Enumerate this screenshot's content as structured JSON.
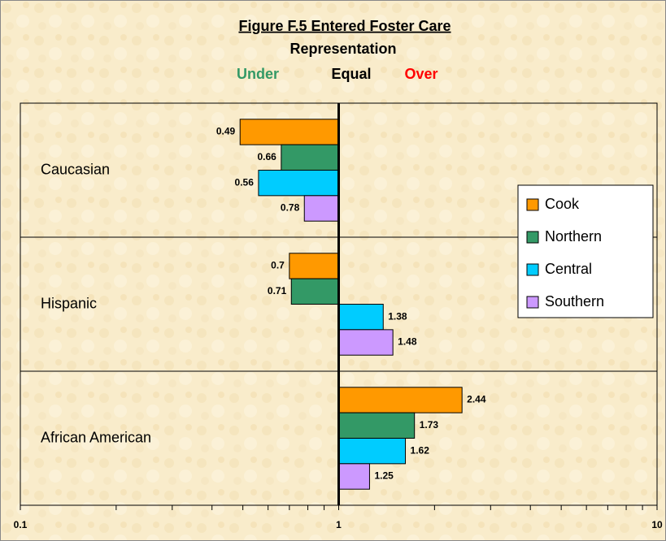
{
  "chart_data": {
    "type": "bar",
    "orientation": "horizontal",
    "title": "Figure F.5 Entered Foster Care",
    "subtitle": "Representation",
    "annotations": [
      {
        "text": "Under",
        "color": "#339966"
      },
      {
        "text": "Equal",
        "color": "#000000"
      },
      {
        "text": "Over",
        "color": "#ff0000"
      }
    ],
    "categories": [
      "Caucasian",
      "Hispanic",
      "African American"
    ],
    "series": [
      {
        "name": "Cook",
        "color": "#ff9900",
        "values": [
          0.49,
          0.7,
          2.44
        ]
      },
      {
        "name": "Northern",
        "color": "#339966",
        "values": [
          0.66,
          0.71,
          1.73
        ]
      },
      {
        "name": "Central",
        "color": "#00ccff",
        "values": [
          0.56,
          1.38,
          1.62
        ]
      },
      {
        "name": "Southern",
        "color": "#cc99ff",
        "values": [
          0.78,
          1.48,
          1.25
        ]
      }
    ],
    "xscale": "log",
    "baseline": 1,
    "xlim": [
      0.1,
      10
    ],
    "xticks": [
      0.1,
      1,
      10
    ],
    "xminorticks": [
      0.2,
      0.3,
      0.4,
      0.5,
      0.6,
      0.7,
      0.8,
      0.9,
      2,
      3,
      4,
      5,
      6,
      7,
      8,
      9
    ],
    "grid": true,
    "legend": "right"
  }
}
